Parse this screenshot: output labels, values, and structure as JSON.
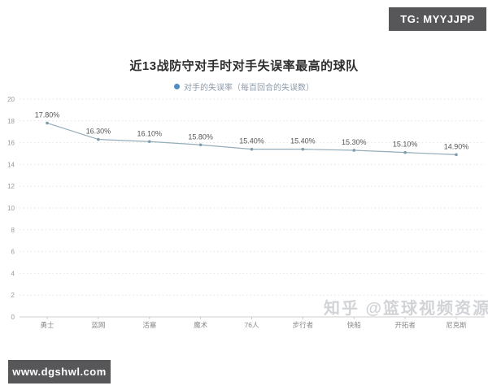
{
  "badges": {
    "top_right": "TG: MYYJJPP",
    "bottom_left": "www.dgshwl.com"
  },
  "watermark_text": "知乎 @篮球视频资源",
  "chart_data": {
    "type": "line",
    "title": "近13战防守对手时对手失误率最高的球队",
    "legend": "对手的失误率（每百回合的失误数）",
    "legend_position": "top-center",
    "categories": [
      "勇士",
      "蓝网",
      "活塞",
      "魔术",
      "76人",
      "步行者",
      "快船",
      "开拓者",
      "尼克斯"
    ],
    "values": [
      17.8,
      16.3,
      16.1,
      15.8,
      15.4,
      15.4,
      15.3,
      15.1,
      14.9
    ],
    "point_labels": [
      "17.80%",
      "16.30%",
      "16.10%",
      "15.80%",
      "15.40%",
      "15.40%",
      "15.30%",
      "15.10%",
      "14.90%"
    ],
    "xlabel": "",
    "ylabel": "",
    "ylim": [
      0,
      20
    ],
    "ytick_step": 2,
    "grid": "horizontal-dotted",
    "colors": {
      "line": "#93adb9",
      "marker": "#7f9cab",
      "legend_dot": "#4e8cc2",
      "data_label": "#555555",
      "axis_label": "#999999",
      "gridline": "#e2e2e2",
      "axis_line": "#cccccc"
    }
  }
}
